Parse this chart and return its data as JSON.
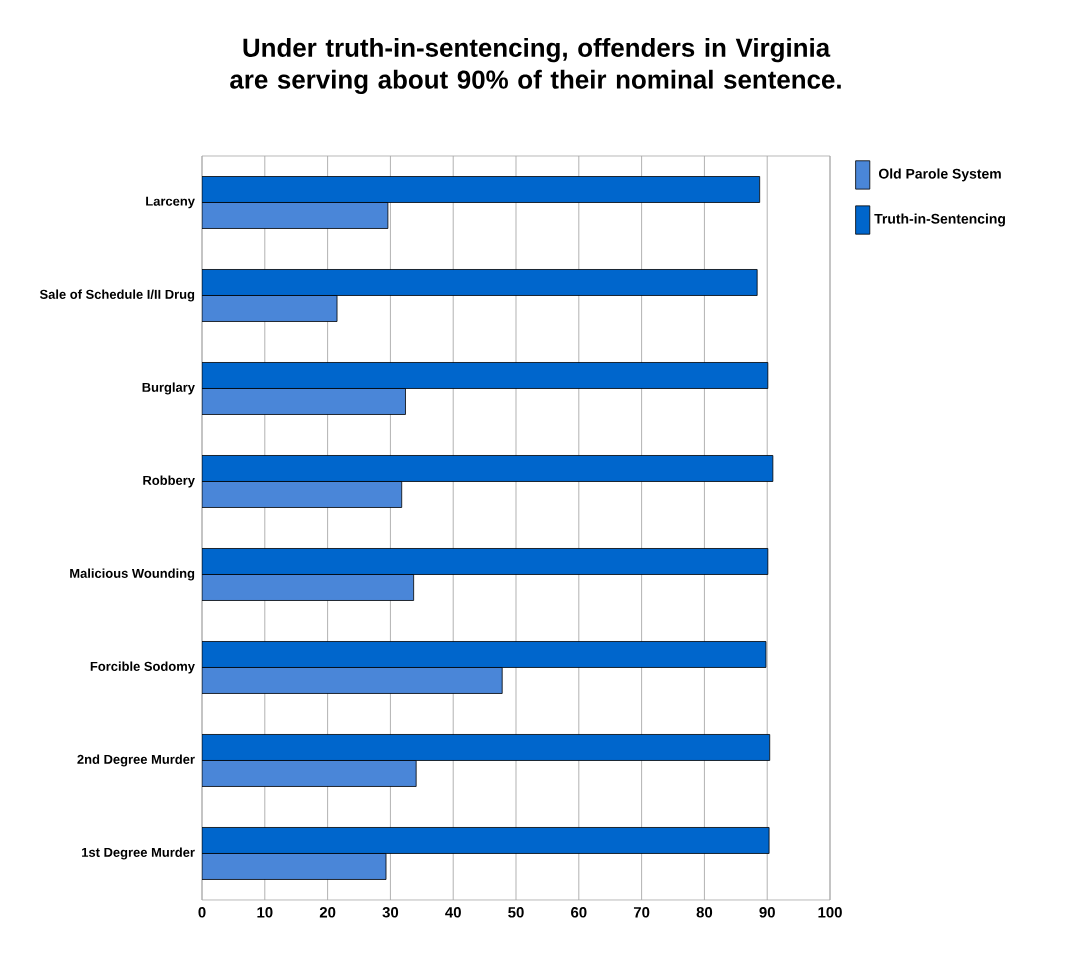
{
  "chart_data": {
    "type": "bar",
    "orientation": "horizontal",
    "title": "Under truth-in-sentencing, offenders in Virginia are serving about 90% of their nominal sentence.",
    "categories": [
      "Larceny",
      "Sale of Schedule I/II Drug",
      "Burglary",
      "Robbery",
      "Malicious Wounding",
      "Forcible Sodomy",
      "2nd Degree Murder",
      "1st Degree Murder"
    ],
    "series": [
      {
        "name": "Old Parole System",
        "color": "#4a86d8",
        "values": [
          29.6,
          21.5,
          32.4,
          31.8,
          33.7,
          47.8,
          34.1,
          29.3
        ]
      },
      {
        "name": "Truth-in-Sentencing",
        "color": "#0066cc",
        "values": [
          88.8,
          88.4,
          90.1,
          90.9,
          90.1,
          89.8,
          90.4,
          90.3
        ]
      }
    ],
    "xlim": [
      0,
      100
    ],
    "xticks": [
      0,
      10,
      20,
      30,
      40,
      50,
      60,
      70,
      80,
      90,
      100
    ],
    "grid": "x",
    "legend": "right"
  }
}
